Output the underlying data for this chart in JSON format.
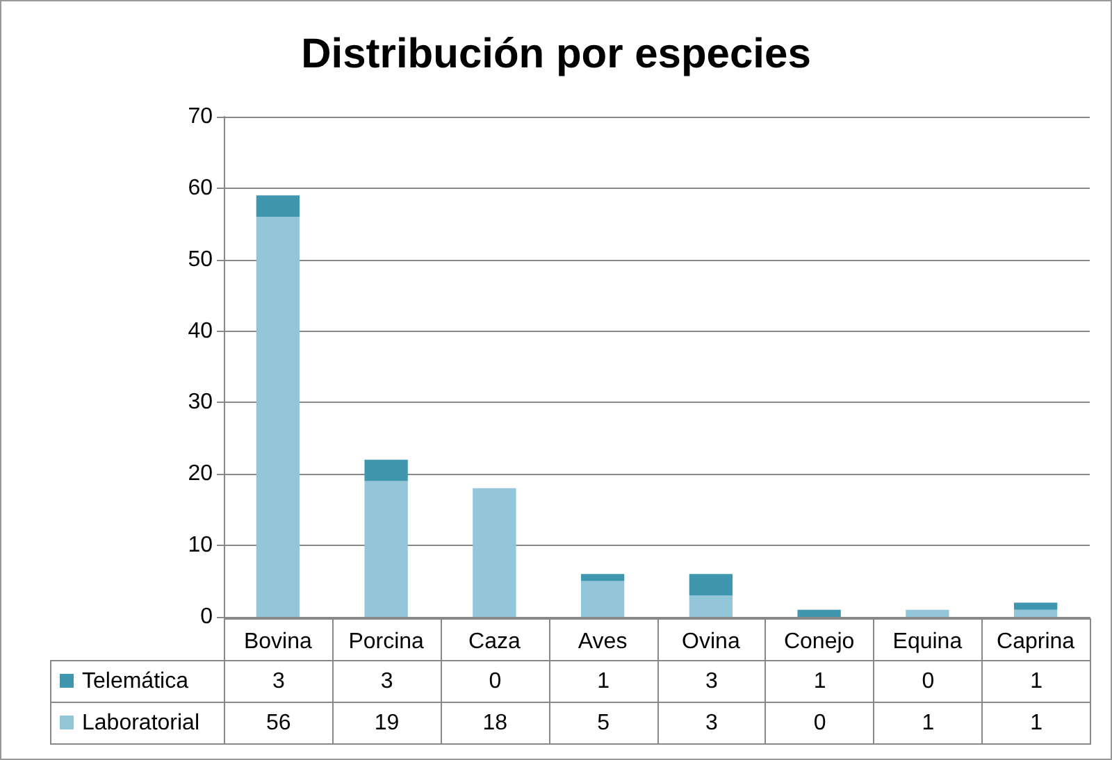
{
  "chart_data": {
    "type": "bar",
    "title": "Distribución por especies",
    "stacked": true,
    "categories": [
      "Bovina",
      "Porcina",
      "Caza",
      "Aves",
      "Ovina",
      "Conejo",
      "Equina",
      "Caprina"
    ],
    "series": [
      {
        "name": "Laboratorial",
        "color": "#93c6d8",
        "values": [
          56,
          19,
          18,
          5,
          3,
          0,
          1,
          1
        ]
      },
      {
        "name": "Telemática",
        "color": "#3e97ae",
        "values": [
          3,
          3,
          0,
          1,
          3,
          1,
          0,
          1
        ]
      }
    ],
    "ylim": [
      0,
      70
    ],
    "yticks": [
      0,
      10,
      20,
      30,
      40,
      50,
      60,
      70
    ],
    "grid": "y",
    "legend": "bottom",
    "data_labels": true
  }
}
